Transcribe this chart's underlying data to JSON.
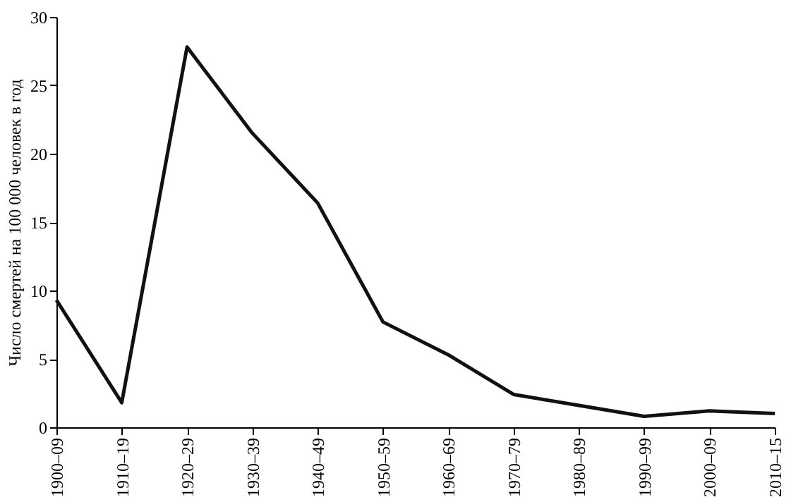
{
  "chart_data": {
    "type": "line",
    "ylabel": "Число смертей на 100 000 человек в год",
    "categories": [
      "1900–09",
      "1910–19",
      "1920–29",
      "1930–39",
      "1940–49",
      "1950–59",
      "1960–69",
      "1970–79",
      "1980–89",
      "1990–99",
      "2000–09",
      "2010–15"
    ],
    "series": [
      {
        "color": "#111111",
        "values": [
          9.3,
          1.8,
          27.8,
          21.5,
          16.4,
          7.7,
          5.3,
          2.4,
          1.6,
          0.8,
          1.2,
          1.0
        ]
      }
    ],
    "ylim": [
      0,
      30
    ],
    "yticks": [
      0,
      5,
      10,
      15,
      20,
      25,
      30
    ],
    "grid": false,
    "legend": false,
    "marker": "none",
    "line_style": "solid"
  }
}
